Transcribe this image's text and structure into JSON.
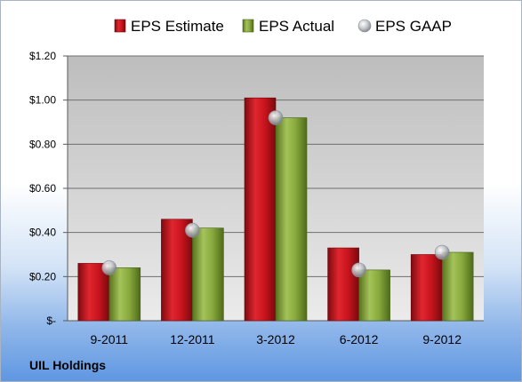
{
  "company": "UIL Holdings",
  "colors": {
    "estimate": "#c8141e",
    "actual": "#86a83c",
    "gaap": "#c0c4c8"
  },
  "chart_data": {
    "type": "bar",
    "title": "",
    "xlabel": "",
    "ylabel": "",
    "categories": [
      "9-2011",
      "12-2011",
      "3-2012",
      "6-2012",
      "9-2012"
    ],
    "series": [
      {
        "name": "EPS Estimate",
        "kind": "bar",
        "values": [
          0.26,
          0.46,
          1.01,
          0.33,
          0.3
        ]
      },
      {
        "name": "EPS Actual",
        "kind": "bar",
        "values": [
          0.24,
          0.42,
          0.92,
          0.23,
          0.31
        ]
      },
      {
        "name": "EPS GAAP",
        "kind": "marker",
        "values": [
          0.24,
          0.41,
          0.92,
          0.23,
          0.31
        ]
      }
    ],
    "ylim": [
      0,
      1.2
    ],
    "yticks": [
      0,
      0.2,
      0.4,
      0.6,
      0.8,
      1.0,
      1.2
    ],
    "ytick_labels": [
      "$-",
      "$0.20",
      "$0.40",
      "$0.60",
      "$0.80",
      "$1.00",
      "$1.20"
    ],
    "grid": true,
    "legend_position": "top"
  }
}
